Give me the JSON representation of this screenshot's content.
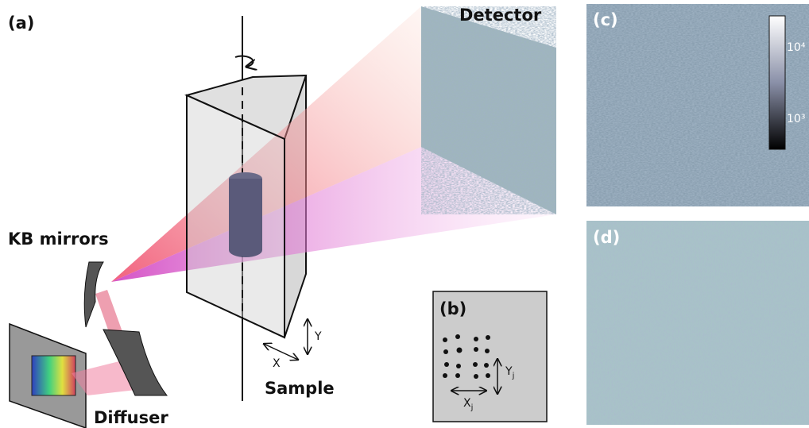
{
  "panel_a": {
    "label": "(a)",
    "detector": "Detector",
    "kb_mirrors": "KB mirrors",
    "diffuser": "Diffuser",
    "sample": "Sample",
    "axis_x": "X",
    "axis_y": "Y"
  },
  "panel_b": {
    "label": "(b)",
    "axis_x": "X",
    "axis_x_sub": "j",
    "axis_y": "Y",
    "axis_y_sub": "j"
  },
  "panel_c": {
    "label": "(c)",
    "colorbar_labels": [
      "10⁴",
      "10³"
    ]
  },
  "panel_d": {
    "label": "(d)"
  }
}
